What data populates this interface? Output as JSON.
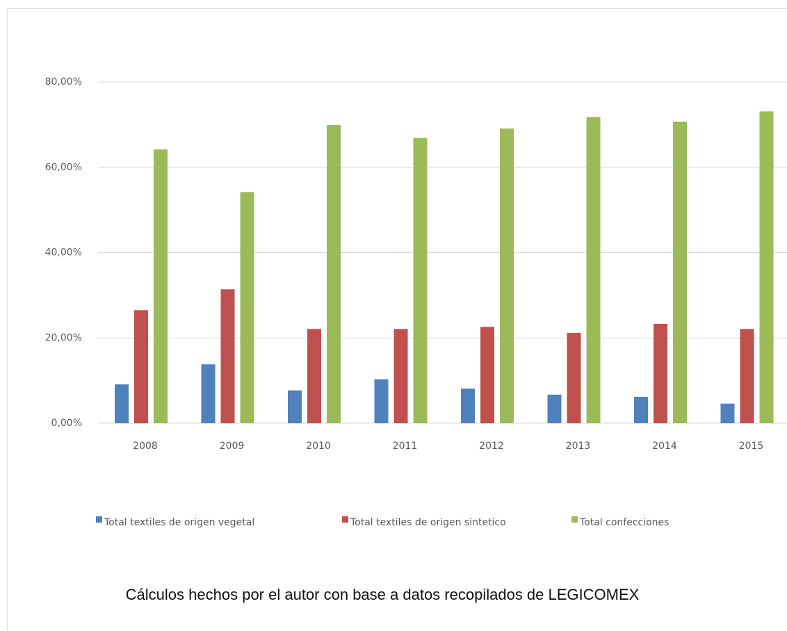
{
  "chart_data": {
    "type": "bar",
    "categories": [
      "2008",
      "2009",
      "2010",
      "2011",
      "2012",
      "2013",
      "2014",
      "2015"
    ],
    "series": [
      {
        "name": "Total textiles de origen vegetal",
        "color": "#4f81bd",
        "values": [
          9.1,
          13.8,
          7.7,
          10.3,
          8.1,
          6.7,
          6.2,
          4.6
        ]
      },
      {
        "name": "Total textiles de origen sintetico",
        "color": "#c0504d",
        "values": [
          26.5,
          31.4,
          22.1,
          22.1,
          22.6,
          21.2,
          23.3,
          22.1
        ]
      },
      {
        "name": "Total confecciones",
        "color": "#9bbb59",
        "values": [
          64.2,
          54.2,
          69.9,
          66.9,
          69.1,
          71.8,
          70.7,
          73.1
        ]
      }
    ],
    "ylim": [
      0,
      80
    ],
    "yticks": [
      {
        "value": 0,
        "label": "0,00%"
      },
      {
        "value": 20,
        "label": "20,00%"
      },
      {
        "value": 40,
        "label": "40,00%"
      },
      {
        "value": 60,
        "label": "60,00%"
      },
      {
        "value": 80,
        "label": "80,00%"
      }
    ],
    "grid": true,
    "legend": "bottom",
    "note": "Cálculos hechos por el autor con base a datos recopilados de LEGICOMEX"
  }
}
